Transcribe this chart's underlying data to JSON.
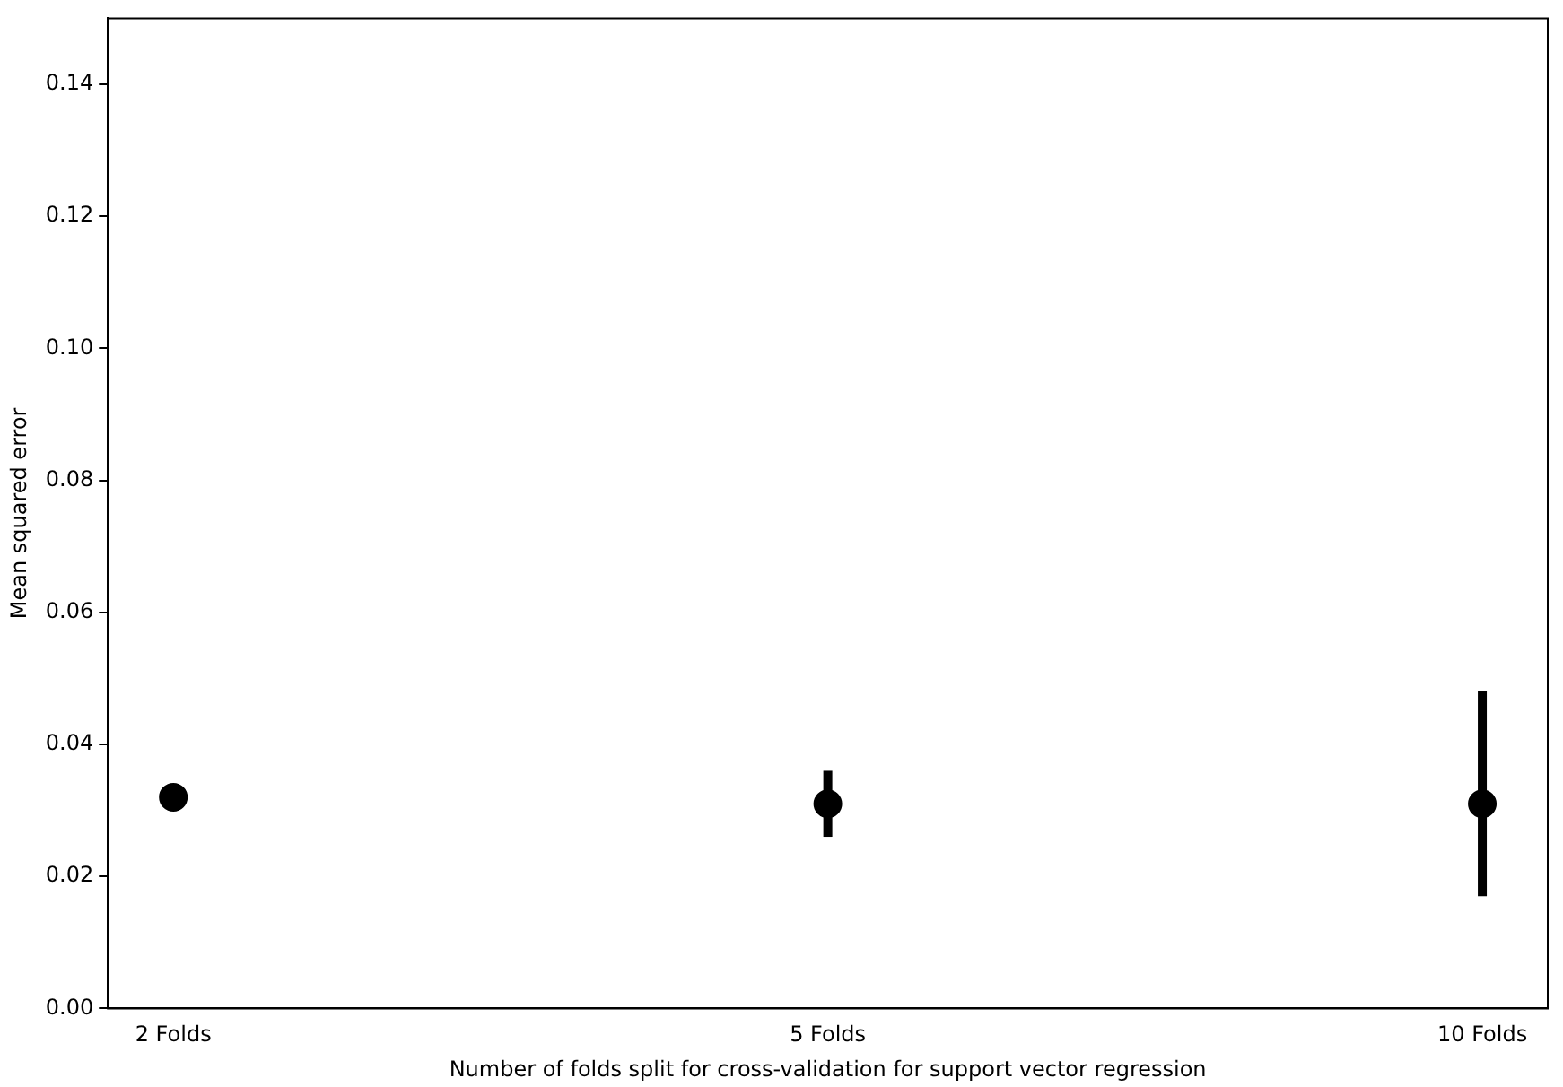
{
  "chart_data": {
    "type": "scatter",
    "xlabel": "Number of folds split for cross-validation for support vector regression",
    "ylabel": "Mean squared error",
    "categories": [
      "2 Folds",
      "5 Folds",
      "10 Folds"
    ],
    "values": [
      0.032,
      0.031,
      0.031
    ],
    "errors": [
      null,
      [
        0.026,
        0.036
      ],
      [
        0.017,
        0.048
      ]
    ],
    "color": "#000000",
    "marker": "circle",
    "ylim": [
      0,
      0.15
    ],
    "yticks": [
      {
        "value": 0,
        "label": "0.00"
      },
      {
        "value": 0.02,
        "label": "0.02"
      },
      {
        "value": 0.04,
        "label": "0.04"
      },
      {
        "value": 0.06,
        "label": "0.06"
      },
      {
        "value": 0.08,
        "label": "0.08"
      },
      {
        "value": 0.1,
        "label": "0.10"
      },
      {
        "value": 0.12,
        "label": "0.12"
      },
      {
        "value": 0.14,
        "label": "0.14"
      }
    ],
    "grid": false,
    "legend": false
  }
}
